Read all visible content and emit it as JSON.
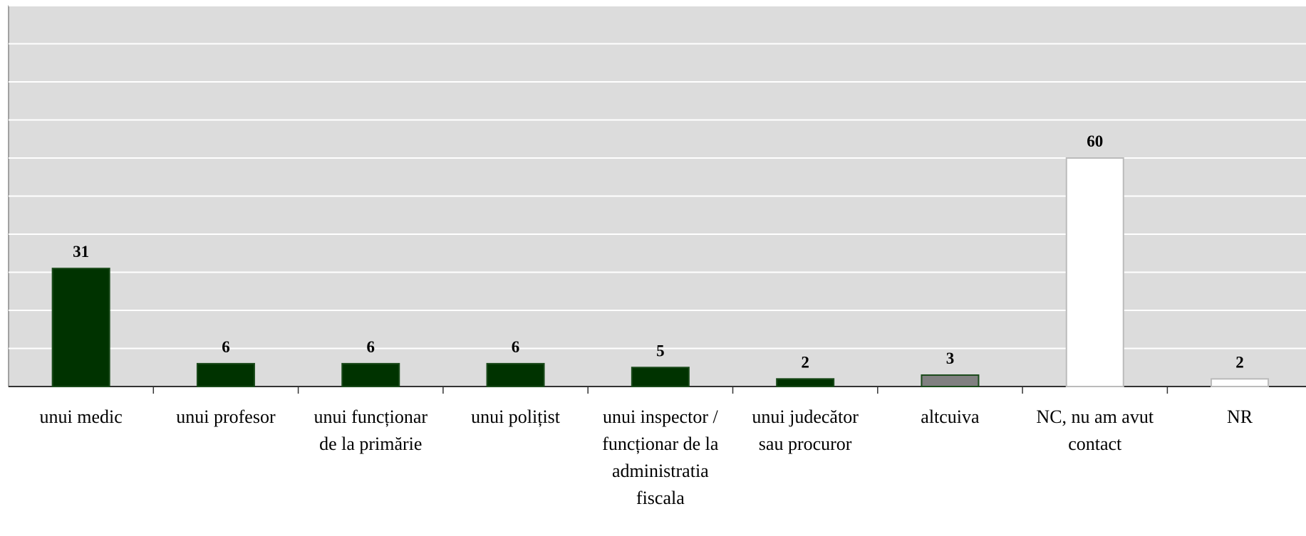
{
  "chart_data": {
    "type": "bar",
    "categories": [
      "unui medic",
      "unui profesor",
      "unui funcționar de la primărie",
      "unui polițist",
      "unui inspector / funcționar de la administratia fiscala",
      "unui judecător sau procuror",
      "altcuiva",
      "NC, nu am avut contact",
      "NR"
    ],
    "values": [
      31,
      6,
      6,
      6,
      5,
      2,
      3,
      60,
      2
    ],
    "colors": [
      "#003300",
      "#003300",
      "#003300",
      "#003300",
      "#003300",
      "#003300",
      "#808080",
      "#ffffff",
      "#ffffff"
    ],
    "ylim": [
      0,
      100
    ],
    "yticks": [
      0,
      10,
      20,
      30,
      40,
      50,
      60,
      70,
      80,
      90,
      100
    ],
    "grid": true
  }
}
